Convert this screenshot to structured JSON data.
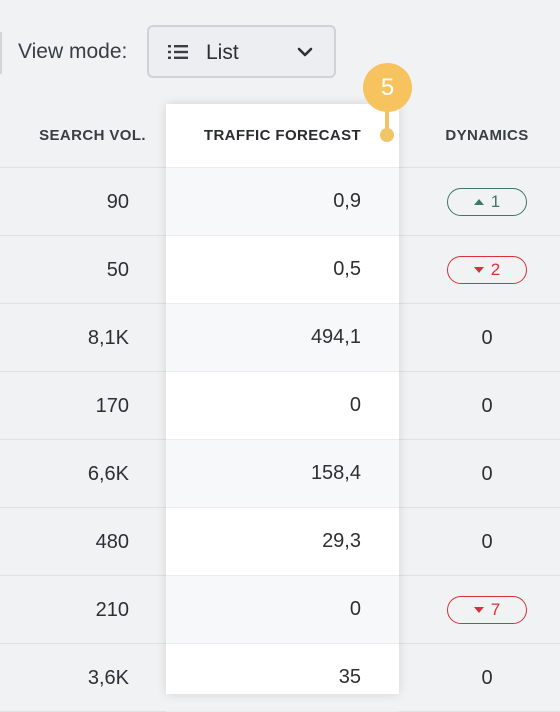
{
  "toolbar": {
    "view_mode_label": "View mode:",
    "view_mode_value": "List",
    "list_icon": "list-icon",
    "dropdown_icon": "chevron-down-icon"
  },
  "columns": {
    "search_volume": "SEARCH VOL.",
    "traffic_forecast": "TRAFFIC FORECAST",
    "dynamics": "DYNAMICS"
  },
  "step": {
    "number": "5",
    "color": "#f6c35f"
  },
  "colors": {
    "dynamics_up": "#3c7a66",
    "dynamics_down": "#d6323a"
  },
  "rows": [
    {
      "search_volume": "90",
      "traffic_forecast": "0,9",
      "dynamics": {
        "type": "up",
        "value": "1"
      }
    },
    {
      "search_volume": "50",
      "traffic_forecast": "0,5",
      "dynamics": {
        "type": "down",
        "value": "2"
      }
    },
    {
      "search_volume": "8,1K",
      "traffic_forecast": "494,1",
      "dynamics": {
        "type": "none",
        "value": "0"
      }
    },
    {
      "search_volume": "170",
      "traffic_forecast": "0",
      "dynamics": {
        "type": "none",
        "value": "0"
      }
    },
    {
      "search_volume": "6,6K",
      "traffic_forecast": "158,4",
      "dynamics": {
        "type": "none",
        "value": "0"
      }
    },
    {
      "search_volume": "480",
      "traffic_forecast": "29,3",
      "dynamics": {
        "type": "none",
        "value": "0"
      }
    },
    {
      "search_volume": "210",
      "traffic_forecast": "0",
      "dynamics": {
        "type": "down",
        "value": "7"
      }
    },
    {
      "search_volume": "3,6K",
      "traffic_forecast": "35",
      "dynamics": {
        "type": "none",
        "value": "0"
      }
    }
  ]
}
